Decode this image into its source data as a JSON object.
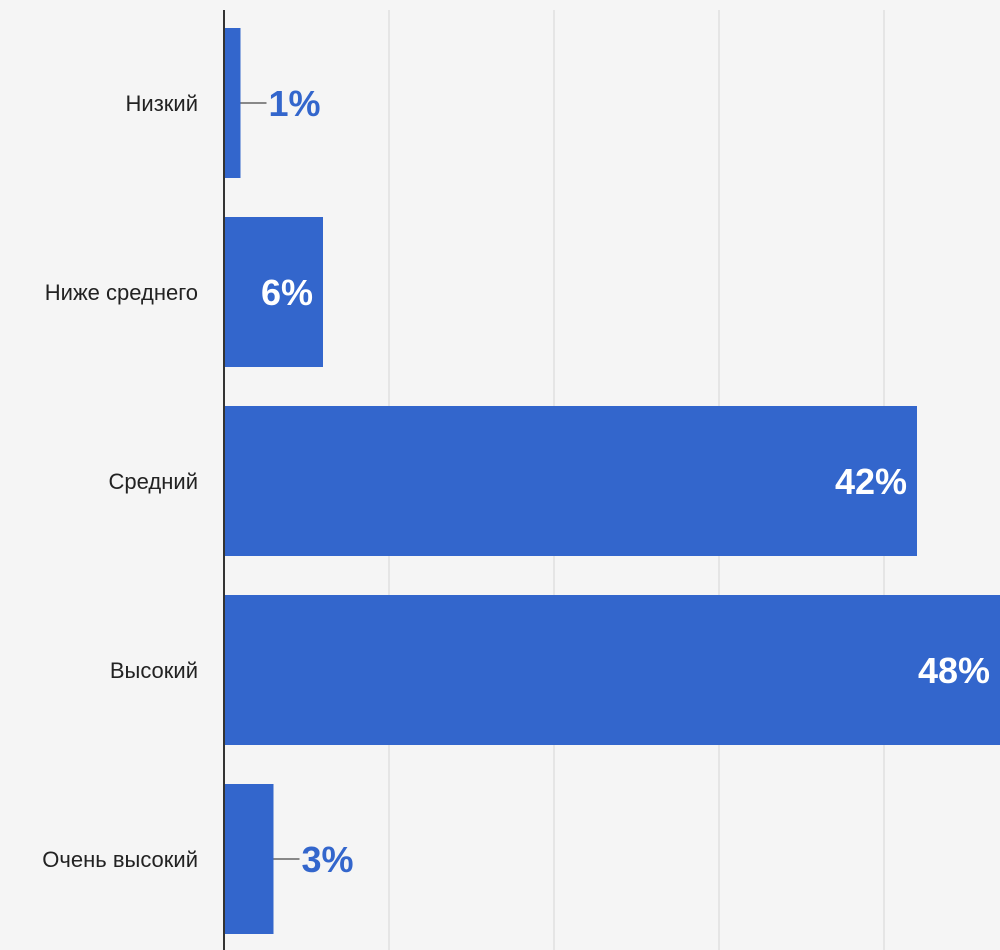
{
  "chart_data": {
    "type": "bar",
    "orientation": "horizontal",
    "categories": [
      "Низкий",
      "Ниже среднего",
      "Средний",
      "Высокий",
      "Очень высокий"
    ],
    "values": [
      1,
      6,
      42,
      48,
      3
    ],
    "value_labels": [
      "1%",
      "6%",
      "42%",
      "48%",
      "3%"
    ],
    "unit": "%",
    "xlim": [
      0,
      48
    ],
    "grid": true,
    "legend": "none",
    "colors": {
      "bar": "#3366cc",
      "label_inside": "#ffffff",
      "label_outside": "#3366cc",
      "axis": "#333333",
      "grid": "#e0e0e0",
      "background": "#f5f5f5"
    }
  }
}
